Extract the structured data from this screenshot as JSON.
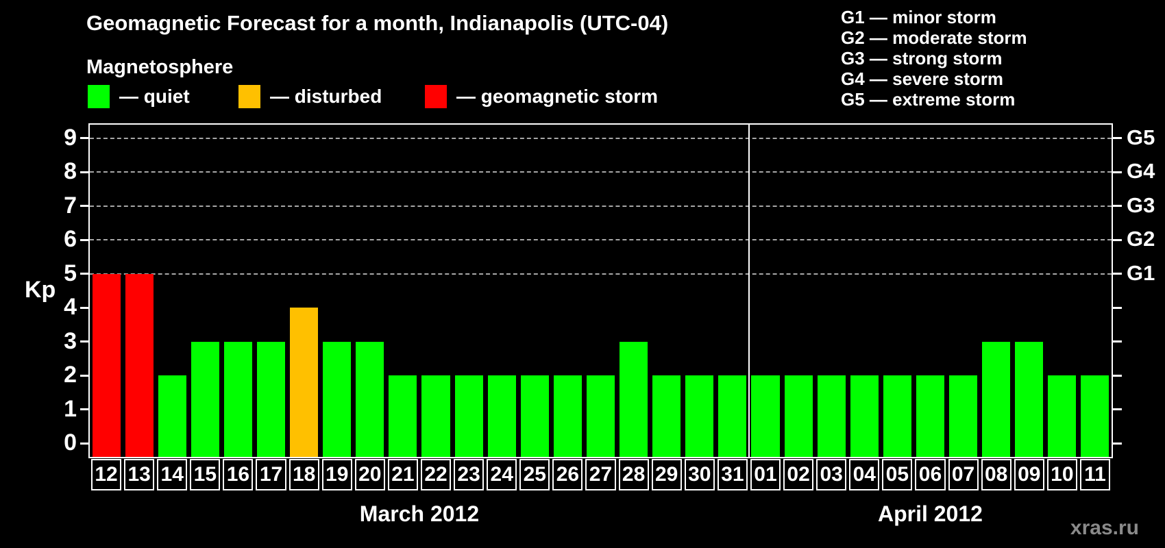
{
  "title": "Geomagnetic Forecast for a month, Indianapolis (UTC-04)",
  "legend": {
    "heading": "Magnetosphere",
    "items": [
      {
        "label": "— quiet",
        "status": "quiet"
      },
      {
        "label": "— disturbed",
        "status": "disturbed"
      },
      {
        "label": "— geomagnetic storm",
        "status": "storm"
      }
    ]
  },
  "g_scale_legend": [
    "G1 — minor storm",
    "G2 — moderate storm",
    "G3 — strong storm",
    "G4 — severe storm",
    "G5 — extreme storm"
  ],
  "watermark": "xras.ru",
  "chart_data": {
    "type": "bar",
    "title": "Geomagnetic Forecast for a month, Indianapolis (UTC-04)",
    "ylabel": "Kp",
    "ylim": [
      -0.4,
      9.4
    ],
    "yticks": [
      0,
      1,
      2,
      3,
      4,
      5,
      6,
      7,
      8,
      9
    ],
    "gridlines_kp": [
      5,
      6,
      7,
      8,
      9
    ],
    "grid": "dashed",
    "right_axis": [
      {
        "kp": 5,
        "label": "G1"
      },
      {
        "kp": 6,
        "label": "G2"
      },
      {
        "kp": 7,
        "label": "G3"
      },
      {
        "kp": 8,
        "label": "G4"
      },
      {
        "kp": 9,
        "label": "G5"
      }
    ],
    "colors": {
      "quiet": "#00ff00",
      "disturbed": "#ffc000",
      "storm": "#ff0000"
    },
    "months": [
      {
        "label": "March 2012",
        "days": [
          {
            "d": "12",
            "kp": 5,
            "status": "storm"
          },
          {
            "d": "13",
            "kp": 5,
            "status": "storm"
          },
          {
            "d": "14",
            "kp": 2,
            "status": "quiet"
          },
          {
            "d": "15",
            "kp": 3,
            "status": "quiet"
          },
          {
            "d": "16",
            "kp": 3,
            "status": "quiet"
          },
          {
            "d": "17",
            "kp": 3,
            "status": "quiet"
          },
          {
            "d": "18",
            "kp": 4,
            "status": "disturbed"
          },
          {
            "d": "19",
            "kp": 3,
            "status": "quiet"
          },
          {
            "d": "20",
            "kp": 3,
            "status": "quiet"
          },
          {
            "d": "21",
            "kp": 2,
            "status": "quiet"
          },
          {
            "d": "22",
            "kp": 2,
            "status": "quiet"
          },
          {
            "d": "23",
            "kp": 2,
            "status": "quiet"
          },
          {
            "d": "24",
            "kp": 2,
            "status": "quiet"
          },
          {
            "d": "25",
            "kp": 2,
            "status": "quiet"
          },
          {
            "d": "26",
            "kp": 2,
            "status": "quiet"
          },
          {
            "d": "27",
            "kp": 2,
            "status": "quiet"
          },
          {
            "d": "28",
            "kp": 3,
            "status": "quiet"
          },
          {
            "d": "29",
            "kp": 2,
            "status": "quiet"
          },
          {
            "d": "30",
            "kp": 2,
            "status": "quiet"
          },
          {
            "d": "31",
            "kp": 2,
            "status": "quiet"
          }
        ]
      },
      {
        "label": "April 2012",
        "days": [
          {
            "d": "01",
            "kp": 2,
            "status": "quiet"
          },
          {
            "d": "02",
            "kp": 2,
            "status": "quiet"
          },
          {
            "d": "03",
            "kp": 2,
            "status": "quiet"
          },
          {
            "d": "04",
            "kp": 2,
            "status": "quiet"
          },
          {
            "d": "05",
            "kp": 2,
            "status": "quiet"
          },
          {
            "d": "06",
            "kp": 2,
            "status": "quiet"
          },
          {
            "d": "07",
            "kp": 2,
            "status": "quiet"
          },
          {
            "d": "08",
            "kp": 3,
            "status": "quiet"
          },
          {
            "d": "09",
            "kp": 3,
            "status": "quiet"
          },
          {
            "d": "10",
            "kp": 2,
            "status": "quiet"
          },
          {
            "d": "11",
            "kp": 2,
            "status": "quiet"
          }
        ]
      }
    ]
  }
}
